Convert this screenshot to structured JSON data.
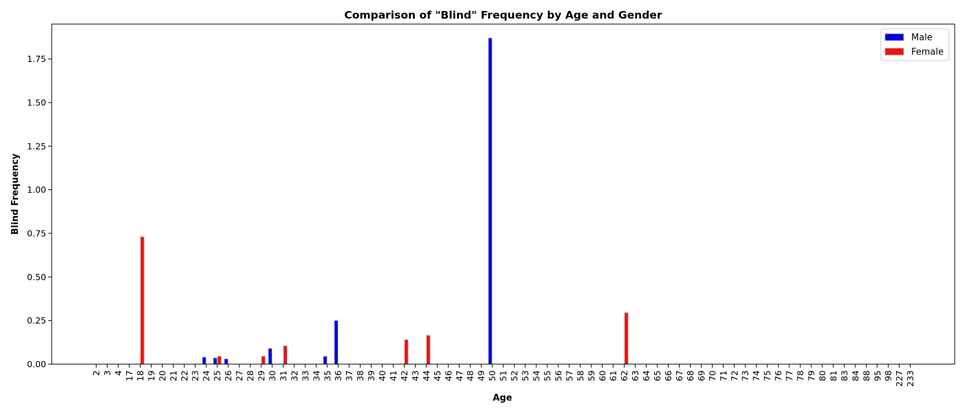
{
  "chart_data": {
    "type": "bar",
    "title": "Comparison of \"Blind\" Frequency by Age and Gender",
    "xlabel": "Age",
    "ylabel": "Blind Frequency",
    "ylim": [
      0,
      1.95
    ],
    "yticks": [
      "0.00",
      "0.25",
      "0.50",
      "0.75",
      "1.00",
      "1.25",
      "1.50",
      "1.75"
    ],
    "categories": [
      "2",
      "3",
      "4",
      "17",
      "18",
      "19",
      "20",
      "21",
      "22",
      "23",
      "24",
      "25",
      "26",
      "27",
      "28",
      "29",
      "30",
      "31",
      "32",
      "33",
      "34",
      "35",
      "36",
      "37",
      "38",
      "39",
      "40",
      "41",
      "42",
      "43",
      "44",
      "45",
      "46",
      "47",
      "48",
      "49",
      "50",
      "51",
      "52",
      "53",
      "54",
      "55",
      "56",
      "57",
      "58",
      "59",
      "60",
      "61",
      "62",
      "63",
      "64",
      "65",
      "66",
      "67",
      "68",
      "69",
      "70",
      "71",
      "72",
      "73",
      "74",
      "75",
      "76",
      "77",
      "78",
      "79",
      "80",
      "81",
      "83",
      "84",
      "88",
      "95",
      "98",
      "227",
      "233"
    ],
    "series": [
      {
        "name": "Male",
        "color": "#0000dd",
        "values": [
          0,
          0,
          0,
          0,
          0,
          0,
          0,
          0,
          0,
          0,
          0.04,
          0.035,
          0.03,
          0,
          0,
          0,
          0.09,
          0,
          0,
          0,
          0,
          0.045,
          0.25,
          0,
          0,
          0,
          0,
          0,
          0,
          0,
          0,
          0,
          0,
          0,
          0,
          0,
          1.87,
          0,
          0,
          0,
          0,
          0,
          0,
          0,
          0,
          0,
          0,
          0,
          0,
          0,
          0,
          0,
          0,
          0,
          0,
          0,
          0,
          0,
          0,
          0,
          0,
          0,
          0,
          0,
          0,
          0,
          0,
          0,
          0,
          0,
          0,
          0,
          0,
          0,
          0
        ]
      },
      {
        "name": "Female",
        "color": "#ee1111",
        "values": [
          0,
          0,
          0,
          0,
          0.73,
          0,
          0,
          0,
          0,
          0,
          0,
          0.045,
          0,
          0,
          0,
          0.045,
          0,
          0.105,
          0,
          0,
          0,
          0,
          0,
          0,
          0,
          0,
          0,
          0,
          0.14,
          0,
          0.165,
          0,
          0,
          0,
          0,
          0,
          0,
          0,
          0,
          0,
          0,
          0,
          0,
          0,
          0,
          0,
          0,
          0,
          0.295,
          0,
          0,
          0,
          0,
          0,
          0,
          0,
          0,
          0,
          0,
          0,
          0,
          0,
          0,
          0,
          0,
          0,
          0,
          0,
          0,
          0,
          0,
          0,
          0,
          0,
          0
        ]
      }
    ],
    "legend": {
      "position": "top-right",
      "entries": [
        "Male",
        "Female"
      ]
    },
    "grid": false
  }
}
